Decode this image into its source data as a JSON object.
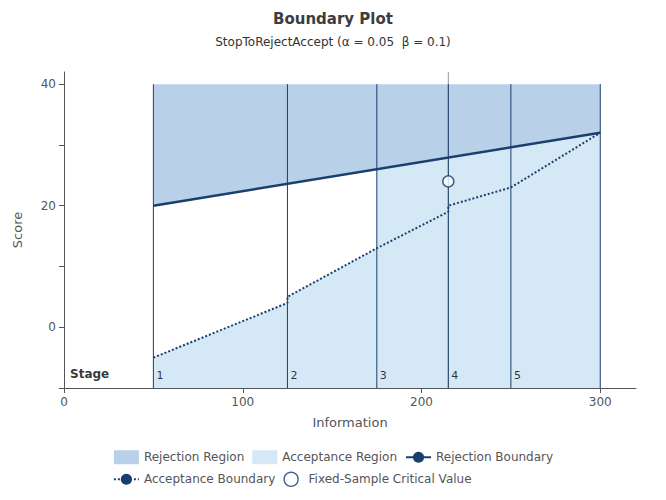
{
  "chart_data": {
    "type": "line",
    "title": "Boundary Plot",
    "subtitle": "StopToRejectAccept (α = 0.05  β = 0.1)",
    "xlabel": "Information",
    "ylabel": "Score",
    "xlim": [
      0,
      320
    ],
    "ylim": [
      -10,
      42
    ],
    "xticks": [
      0,
      100,
      200,
      300
    ],
    "yticks": [
      {
        "value": -10,
        "label": ""
      },
      0,
      {
        "value": 10,
        "label": ""
      },
      20,
      {
        "value": 30,
        "label": ""
      },
      40
    ],
    "grid": false,
    "legend": "bottom",
    "series": [
      {
        "name": "Rejection Region",
        "type": "area",
        "color": "#b8d0e8",
        "x": [
          50,
          300,
          300,
          50
        ],
        "values": [
          20,
          32,
          40,
          40
        ]
      },
      {
        "name": "Acceptance Region",
        "type": "area",
        "color": "#d5e8f5",
        "x": [
          50,
          125,
          125,
          175,
          175,
          215,
          215,
          250,
          250,
          300,
          300,
          50,
          null,
          175,
          300,
          300,
          250,
          250,
          215,
          215,
          175,
          175
        ],
        "values": [
          -5,
          4,
          5,
          13,
          13,
          19,
          20,
          23,
          23,
          32,
          -10,
          -10,
          null,
          26,
          32,
          32,
          23,
          23,
          20,
          19,
          13,
          13
        ]
      },
      {
        "name": "Rejection Boundary",
        "type": "line",
        "color": "#1a3f6f",
        "line_style": "solid",
        "x": [
          50,
          300
        ],
        "values": [
          20,
          32
        ]
      },
      {
        "name": "Acceptance Boundary",
        "type": "line",
        "color": "#1a3f6f",
        "line_style": "dotted",
        "x": [
          50,
          125,
          125,
          175,
          175,
          215,
          215,
          250,
          250,
          300
        ],
        "values": [
          -5,
          4,
          5,
          13,
          13,
          19,
          20,
          23,
          23,
          32
        ]
      },
      {
        "name": "Fixed-Sample Critical Value",
        "type": "scatter",
        "color": "#1a3f6f",
        "marker": "circle",
        "x": [
          215
        ],
        "values": [
          24
        ]
      }
    ],
    "stages": {
      "label": "Stage",
      "x": [
        50,
        125,
        175,
        215,
        250,
        300
      ],
      "labels": [
        "1",
        "2",
        "3",
        "4",
        "5"
      ],
      "from": -10,
      "to": 40,
      "color": "#1a3f6f"
    },
    "reference_line": {
      "x": 215,
      "color": "#999999"
    }
  }
}
